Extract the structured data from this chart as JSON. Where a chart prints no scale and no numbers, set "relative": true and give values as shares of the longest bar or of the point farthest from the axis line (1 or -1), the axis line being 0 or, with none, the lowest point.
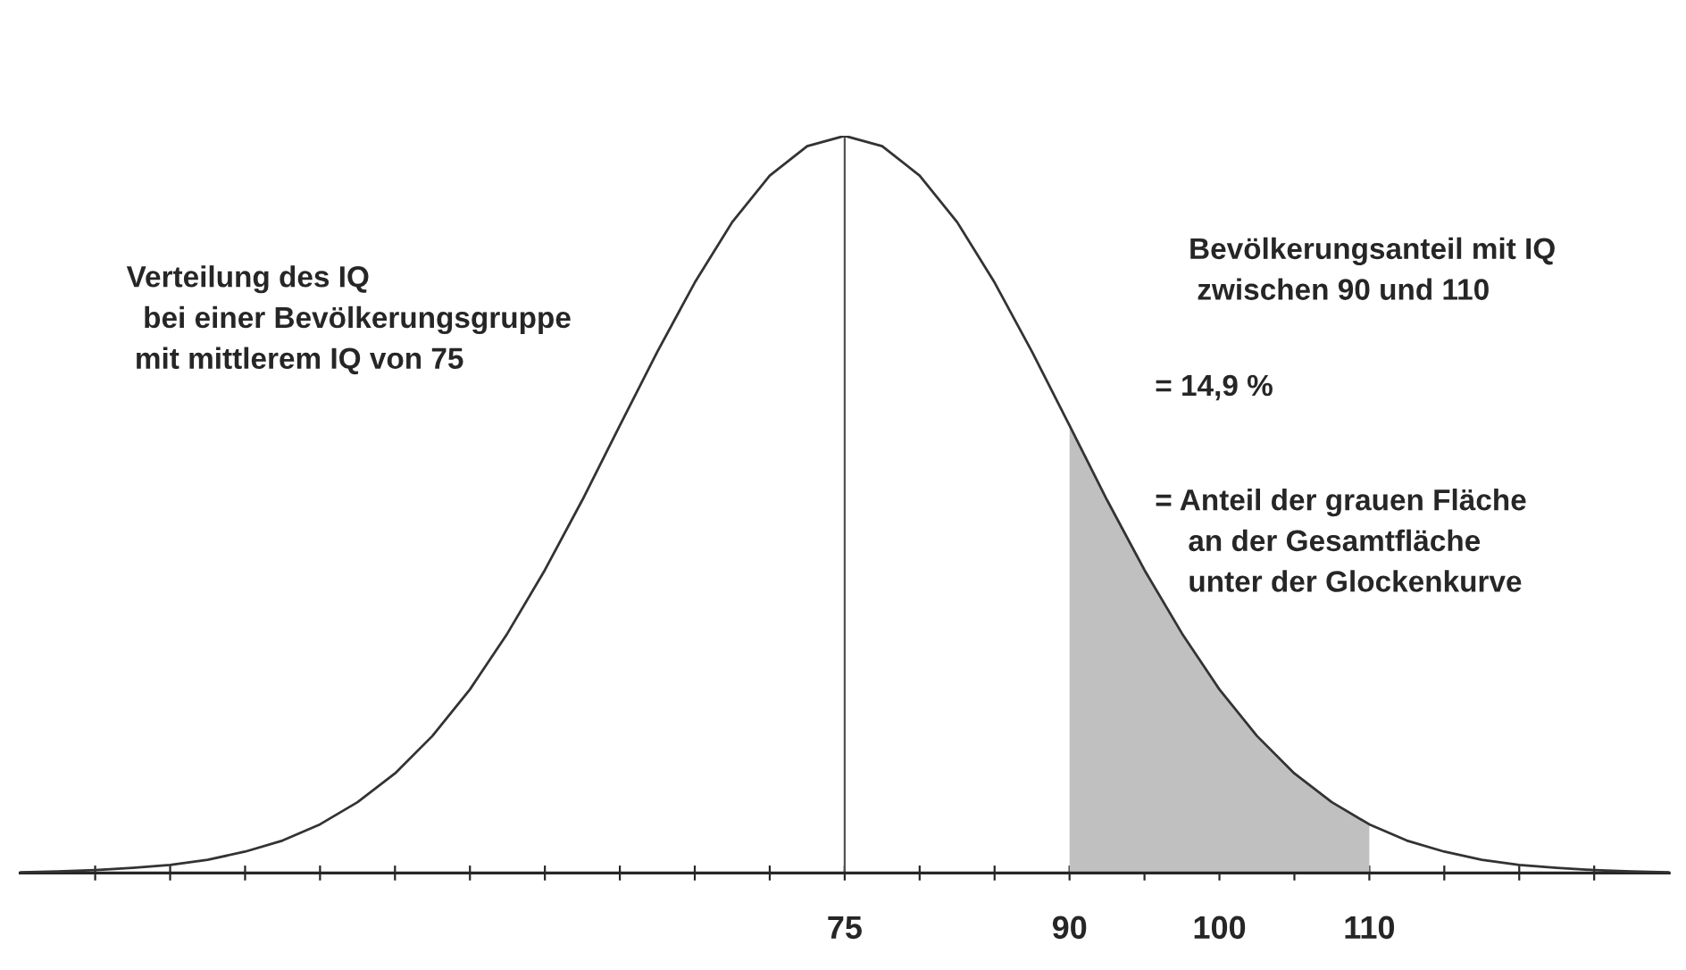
{
  "chart_data": {
    "type": "line",
    "relative": true,
    "x": [
      20,
      22.5,
      25,
      27.5,
      30,
      32.5,
      35,
      37.5,
      40,
      42.5,
      45,
      47.5,
      50,
      52.5,
      55,
      57.5,
      60,
      62.5,
      65,
      67.5,
      70,
      72.5,
      75,
      77.5,
      80,
      82.5,
      85,
      87.5,
      90,
      92.5,
      95,
      97.5,
      100,
      102.5,
      105,
      107.5,
      110,
      112.5,
      115,
      117.5,
      120,
      122.5,
      125,
      127.5,
      130
    ],
    "series": [
      {
        "type": "area",
        "color": "#c0c0c0",
        "x": [
          90,
          92.5,
          95,
          97.5,
          100,
          102.5,
          105,
          107.5,
          110
        ],
        "values": [
          0.607,
          0.506,
          0.411,
          0.325,
          0.249,
          0.186,
          0.135,
          0.096,
          0.066
        ]
      },
      {
        "color": "#333333",
        "values": [
          0.001,
          0.002,
          0.004,
          0.007,
          0.011,
          0.018,
          0.029,
          0.044,
          0.066,
          0.096,
          0.135,
          0.186,
          0.249,
          0.325,
          0.411,
          0.506,
          0.607,
          0.707,
          0.801,
          0.883,
          0.946,
          0.986,
          1,
          0.986,
          0.946,
          0.883,
          0.801,
          0.707,
          0.607,
          0.506,
          0.411,
          0.325,
          0.249,
          0.186,
          0.135,
          0.096,
          0.066,
          0.044,
          0.029,
          0.018,
          0.011,
          0.007,
          0.004,
          0.002,
          0.001
        ]
      }
    ],
    "xlim": [
      20,
      130
    ],
    "xticks": [
      {
        "value": 25,
        "label": null
      },
      {
        "value": 30,
        "label": null
      },
      {
        "value": 35,
        "label": null
      },
      {
        "value": 40,
        "label": null
      },
      {
        "value": 45,
        "label": null
      },
      {
        "value": 50,
        "label": null
      },
      {
        "value": 55,
        "label": null
      },
      {
        "value": 60,
        "label": null
      },
      {
        "value": 65,
        "label": null
      },
      {
        "value": 70,
        "label": null
      },
      75,
      {
        "value": 80,
        "label": null
      },
      {
        "value": 85,
        "label": null
      },
      90,
      {
        "value": 95,
        "label": null
      },
      100,
      {
        "value": 105,
        "label": null
      },
      110,
      {
        "value": 115,
        "label": null
      },
      {
        "value": 120,
        "label": null
      },
      {
        "value": 125,
        "label": null
      }
    ],
    "ref_lines": [
      {
        "axis": "x",
        "value": 75,
        "color": "#555555"
      }
    ],
    "annotations": [
      "Verteilung des IQ\n  bei einer Bevölkerungsgruppe\n mit mittlerem IQ von 75",
      "Bevölkerungsanteil mit IQ\n zwischen 90 und 110",
      "= 14,9 %",
      "= Anteil der grauen Fläche\n    an der Gesamtfläche\n    unter der Glockenkurve"
    ],
    "grid": false,
    "legend": false,
    "marker": "none",
    "line_style": "solid"
  }
}
